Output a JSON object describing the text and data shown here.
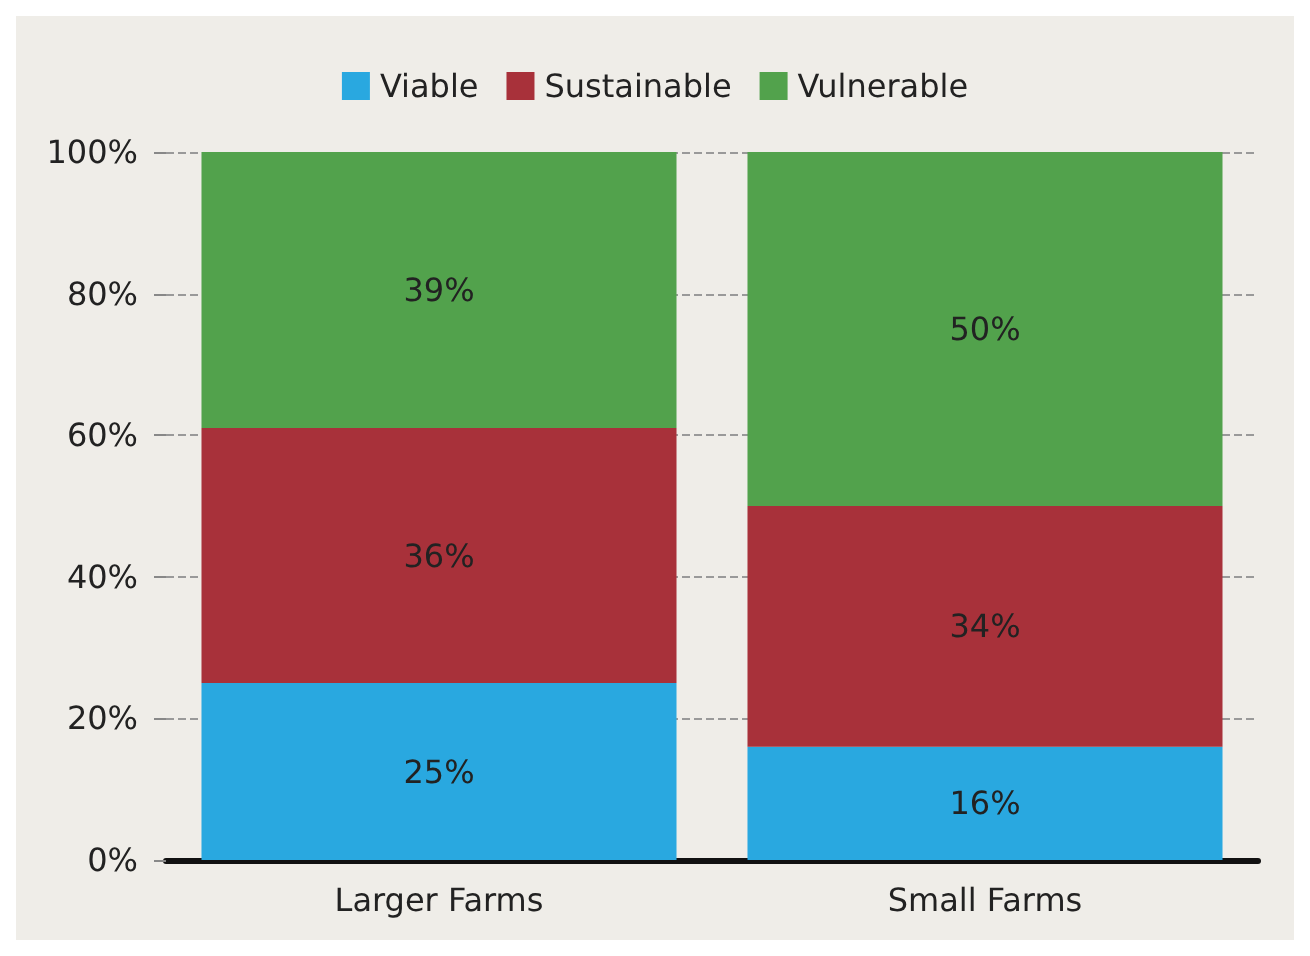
{
  "chart_data": {
    "type": "bar",
    "stacked": true,
    "categories": [
      "Larger Farms",
      "Small Farms"
    ],
    "series": [
      {
        "name": "Viable",
        "color": "#29a8e0",
        "values": [
          25,
          16
        ],
        "value_labels": [
          "25%",
          "16%"
        ]
      },
      {
        "name": "Sustainable",
        "color": "#a8313a",
        "values": [
          36,
          34
        ],
        "value_labels": [
          "36%",
          "34%"
        ]
      },
      {
        "name": "Vulnerable",
        "color": "#52a24c",
        "values": [
          39,
          50
        ],
        "value_labels": [
          "39%",
          "50%"
        ]
      }
    ],
    "ylim": [
      0,
      100
    ],
    "yticks": [
      {
        "value": 0,
        "label": "0%"
      },
      {
        "value": 20,
        "label": "20%"
      },
      {
        "value": 40,
        "label": "40%"
      },
      {
        "value": 60,
        "label": "60%"
      },
      {
        "value": 80,
        "label": "80%"
      },
      {
        "value": 100,
        "label": "100%"
      }
    ],
    "grid": "y",
    "legend": "top"
  }
}
